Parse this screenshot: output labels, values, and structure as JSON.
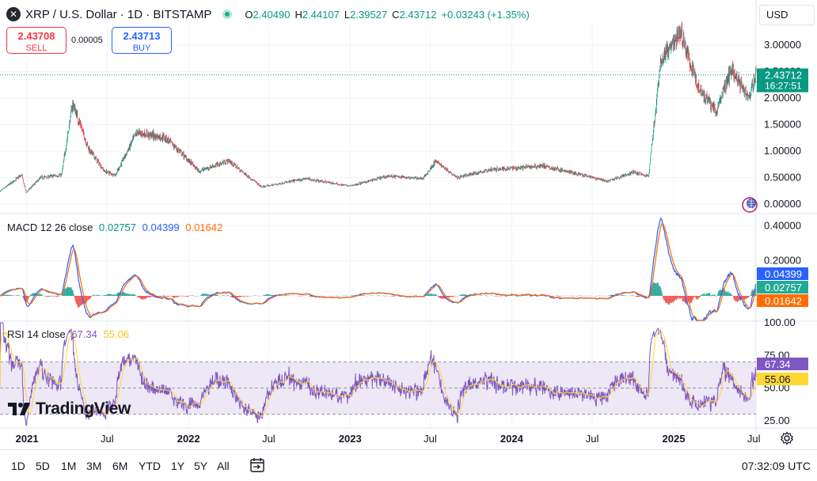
{
  "header": {
    "title": "XRP / U.S. Dollar · 1D · BITSTAMP",
    "logo_icon": "xrp-logo-icon",
    "ohlc": [
      {
        "key": "O",
        "value": "2.40490"
      },
      {
        "key": "H",
        "value": "2.44107"
      },
      {
        "key": "L",
        "value": "2.39527"
      },
      {
        "key": "C",
        "value": "2.43712"
      }
    ],
    "change": "+0.03243 (+1.35%)"
  },
  "trade": {
    "sell_price": "2.43708",
    "sell_label": "SELL",
    "spread": "0.00005",
    "buy_price": "2.43713",
    "buy_label": "BUY"
  },
  "currency": "USD",
  "brand": "TradingView",
  "timeframes": [
    "1D",
    "5D",
    "1M",
    "3M",
    "6M",
    "YTD",
    "1Y",
    "5Y",
    "All"
  ],
  "clock": "07:32:09 UTC",
  "colors": {
    "up": "#089981",
    "down": "#f23645",
    "macd_line": "#2962ff",
    "signal_line": "#ff6d00",
    "rsi_line": "#7e57c2",
    "rsi_ma": "#fdd835",
    "rsi_band": "#ede7f6"
  },
  "chart_data": [
    {
      "type": "candlestick",
      "title": "XRP / U.S. Dollar · 1D · BITSTAMP",
      "ylim": [
        0,
        3.4
      ],
      "y_ticks": [
        "3.00000",
        "2.50000",
        "2.00000",
        "1.50000",
        "1.00000",
        "0.50000",
        "0.00000"
      ],
      "y_tick_values": [
        3.0,
        2.5,
        2.0,
        1.5,
        1.0,
        0.5,
        0.0
      ],
      "x_ticks": [
        "2021",
        "Jul",
        "2022",
        "Jul",
        "2023",
        "Jul",
        "2024",
        "Jul",
        "2025",
        "Jul"
      ],
      "x_tick_dates": [
        "2021-01-01",
        "2021-07-01",
        "2022-01-01",
        "2022-07-01",
        "2023-01-01",
        "2023-07-01",
        "2024-01-01",
        "2024-07-01",
        "2025-01-01",
        "2025-07-01"
      ],
      "x_range": [
        "2020-11-01",
        "2025-07-06"
      ],
      "last_price": "2.43712",
      "countdown": "16:27:51",
      "approx_close_path": [
        {
          "date": "2020-11-01",
          "close": 0.24
        },
        {
          "date": "2020-12-20",
          "close": 0.55
        },
        {
          "date": "2020-12-30",
          "close": 0.22
        },
        {
          "date": "2021-02-01",
          "close": 0.5
        },
        {
          "date": "2021-03-20",
          "close": 0.55
        },
        {
          "date": "2021-04-14",
          "close": 1.9
        },
        {
          "date": "2021-05-20",
          "close": 1.05
        },
        {
          "date": "2021-06-25",
          "close": 0.62
        },
        {
          "date": "2021-07-20",
          "close": 0.55
        },
        {
          "date": "2021-09-06",
          "close": 1.35
        },
        {
          "date": "2021-11-10",
          "close": 1.25
        },
        {
          "date": "2021-12-31",
          "close": 0.83
        },
        {
          "date": "2022-01-24",
          "close": 0.62
        },
        {
          "date": "2022-04-01",
          "close": 0.82
        },
        {
          "date": "2022-06-15",
          "close": 0.32
        },
        {
          "date": "2022-09-23",
          "close": 0.48
        },
        {
          "date": "2022-12-31",
          "close": 0.34
        },
        {
          "date": "2023-03-29",
          "close": 0.53
        },
        {
          "date": "2023-06-15",
          "close": 0.48
        },
        {
          "date": "2023-07-13",
          "close": 0.81
        },
        {
          "date": "2023-09-01",
          "close": 0.5
        },
        {
          "date": "2023-11-15",
          "close": 0.65
        },
        {
          "date": "2024-03-11",
          "close": 0.72
        },
        {
          "date": "2024-08-05",
          "close": 0.43
        },
        {
          "date": "2024-10-01",
          "close": 0.6
        },
        {
          "date": "2024-11-05",
          "close": 0.52
        },
        {
          "date": "2024-12-03",
          "close": 2.7
        },
        {
          "date": "2025-01-16",
          "close": 3.25
        },
        {
          "date": "2025-02-25",
          "close": 2.2
        },
        {
          "date": "2025-04-07",
          "close": 1.75
        },
        {
          "date": "2025-05-12",
          "close": 2.55
        },
        {
          "date": "2025-06-20",
          "close": 2.02
        },
        {
          "date": "2025-07-06",
          "close": 2.43712
        }
      ]
    },
    {
      "type": "line",
      "title": "MACD 12 26 close",
      "values": {
        "histogram": "0.02757",
        "macd": "0.04399",
        "signal": "0.01642"
      },
      "ylim": [
        -0.14,
        0.46
      ],
      "y_ticks": [
        "0.40000",
        "0.20000"
      ],
      "y_tick_values": [
        0.4,
        0.2
      ]
    },
    {
      "type": "line",
      "title": "RSI 14 close",
      "values": {
        "rsi": "67.34",
        "rsi_ma": "55.06"
      },
      "ylim": [
        20,
        100
      ],
      "y_ticks": [
        "100.00",
        "75.00",
        "50.00",
        "25.00"
      ],
      "y_tick_values": [
        100,
        75,
        50,
        25
      ],
      "bands": [
        30,
        50,
        70
      ]
    }
  ]
}
